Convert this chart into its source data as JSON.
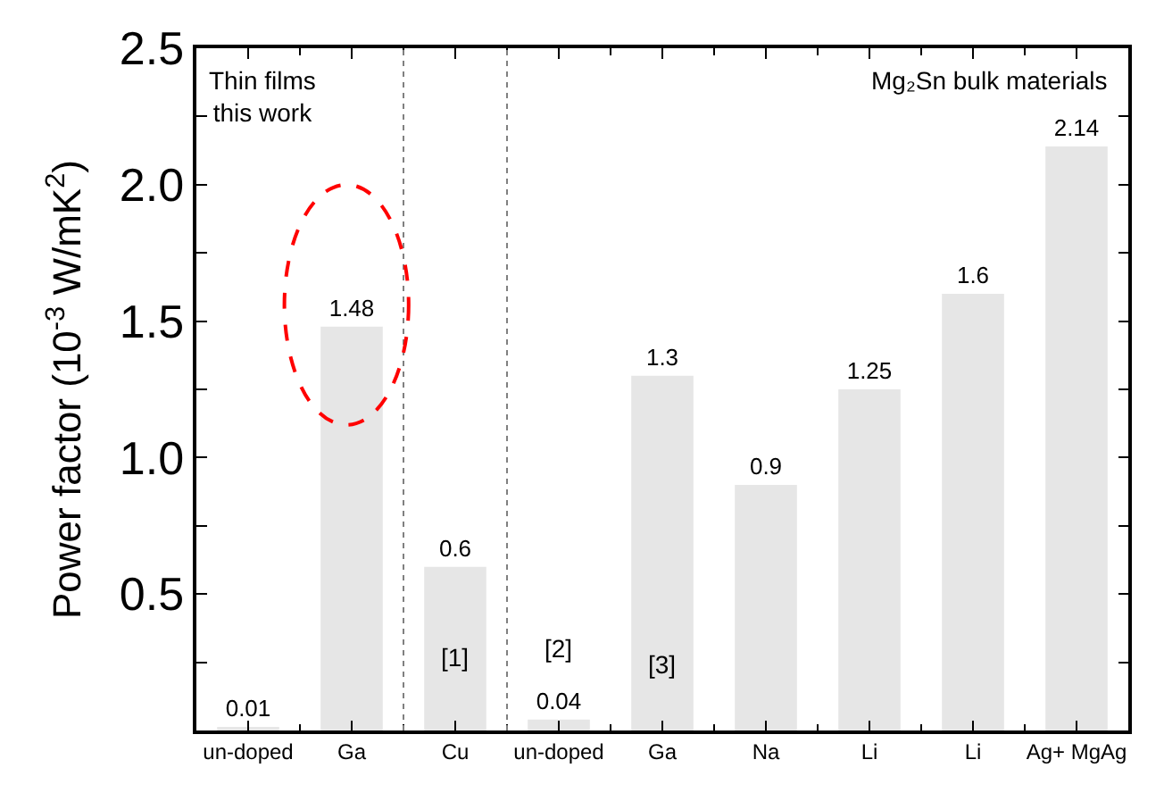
{
  "chart_data": {
    "ylabel": "Power factor (10$^{-3}$ W/mK$^{2}$)",
    "categories": [
      "un-doped",
      "Ga",
      "Cu",
      "un-doped",
      "Ga",
      "Na",
      "Li",
      "Li",
      "Ag+ MgAg"
    ],
    "values": [
      0.01,
      1.48,
      0.6,
      0.04,
      1.3,
      0.9,
      1.25,
      1.6,
      2.14
    ],
    "type": "bar",
    "color": "#e6e6e6",
    "data_labels": true,
    "ylim": [
      0,
      2.5
    ],
    "yticks": [
      {
        "value": 0.25,
        "label": null
      },
      0.5,
      {
        "value": 0.75,
        "label": null
      },
      {
        "value": 1,
        "label": "1.0"
      },
      {
        "value": 1.25,
        "label": null
      },
      1.5,
      {
        "value": 1.75,
        "label": null
      },
      {
        "value": 2,
        "label": "2.0"
      },
      {
        "value": 2.25,
        "label": null
      },
      2.5
    ],
    "annotations": [
      "Thin films\nthis work",
      "Mg₂Sn bulk materials",
      "[1]",
      "[2]",
      "[3]"
    ]
  }
}
